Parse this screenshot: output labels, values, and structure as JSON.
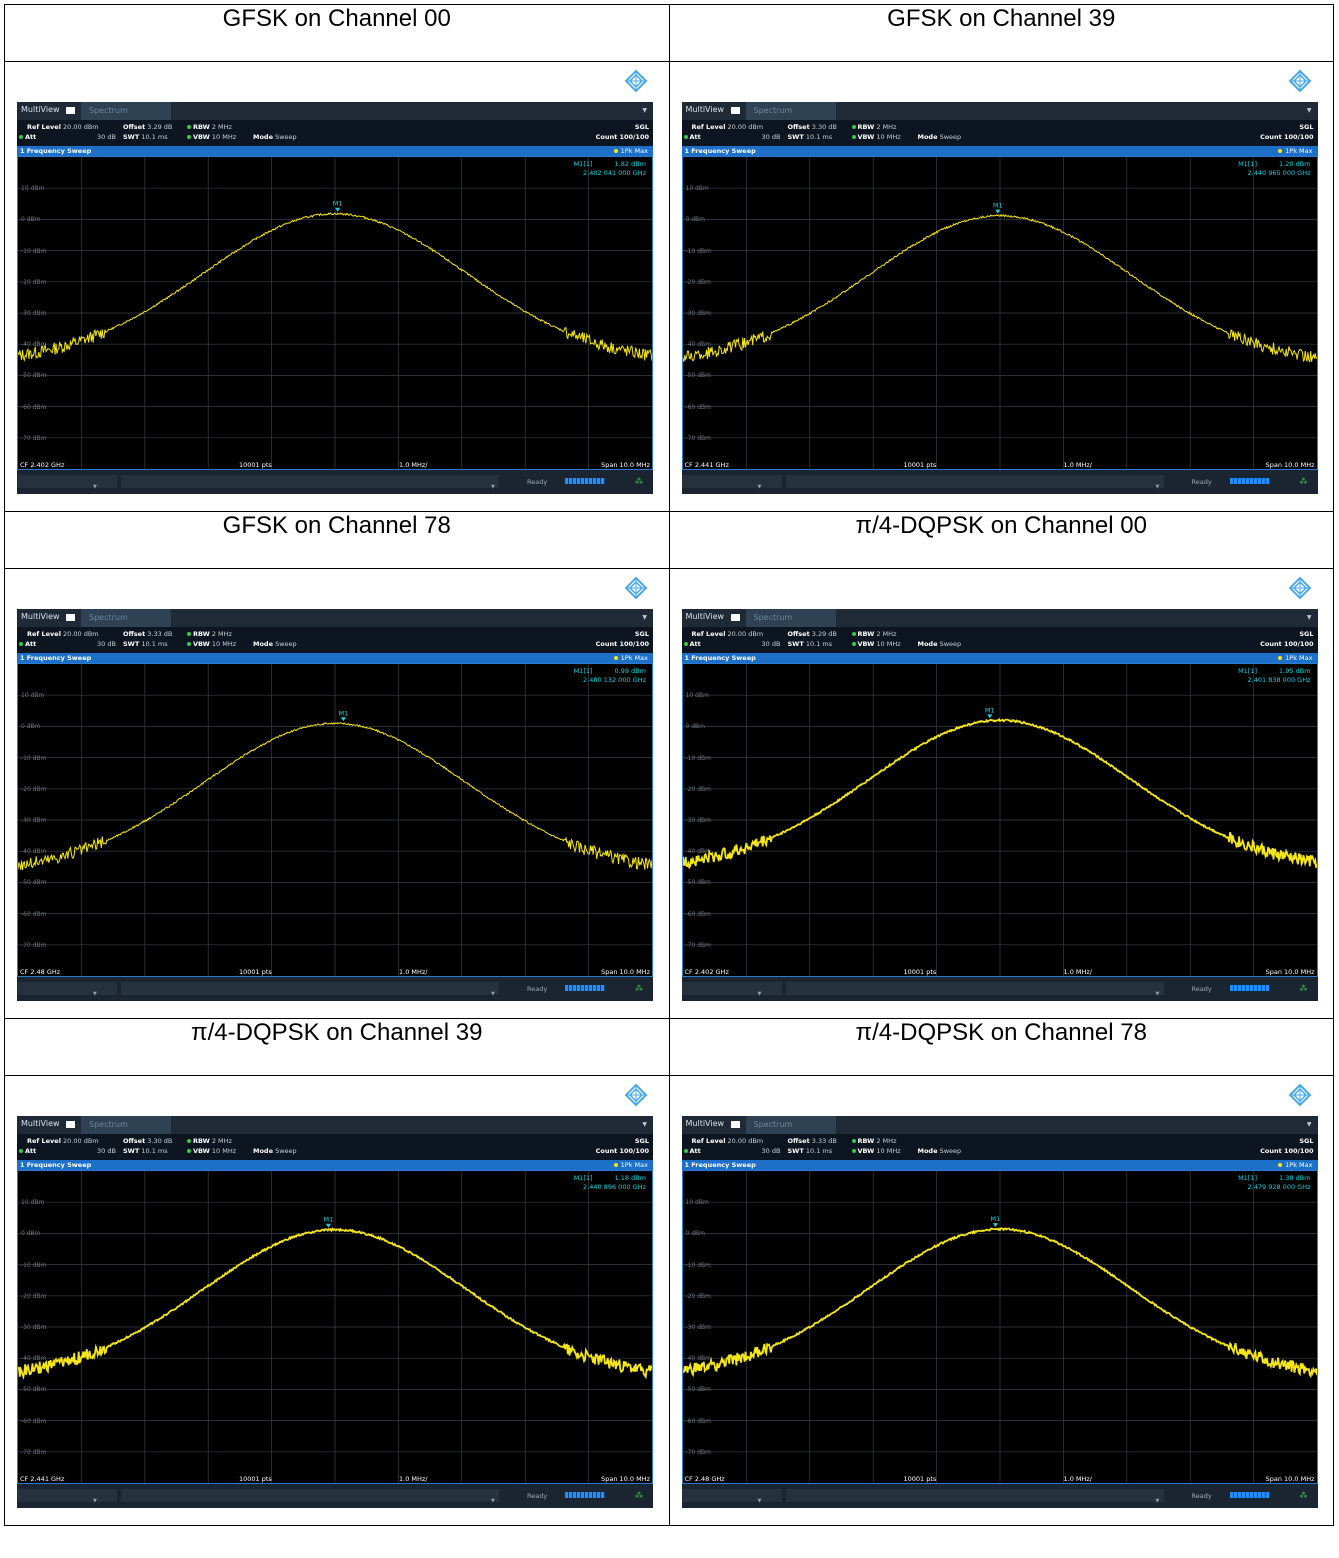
{
  "panels": [
    {
      "caption": "GFSK on Channel 00",
      "ref_level": "20.00 dBm",
      "offset": "3.29 dB",
      "rbw": "2 MHz",
      "att": "30 dB",
      "swt": "10.1 ms",
      "vbw": "10 MHz",
      "mode": "Sweep",
      "sgl": "SGL",
      "count": "Count 100/100",
      "sweep_title": "1 Frequency Sweep",
      "trace": "1Pk Max",
      "marker_id": "M1[1]",
      "marker_level": "1.82 dBm",
      "marker_freq": "2.402 041 000 GHz",
      "marker_label": "M1",
      "cf": "CF 2.402 GHz",
      "pts": "10001 pts",
      "div": "1.0 MHz/",
      "span": "Span 10.0 MHz",
      "status": "Ready",
      "peak_db": 1.82,
      "marker_offset_mhz": 0.041,
      "thickness": 1.0
    },
    {
      "caption": "GFSK on Channel 39",
      "ref_level": "20.00 dBm",
      "offset": "3.30 dB",
      "rbw": "2 MHz",
      "att": "30 dB",
      "swt": "10.1 ms",
      "vbw": "10 MHz",
      "mode": "Sweep",
      "sgl": "SGL",
      "count": "Count 100/100",
      "sweep_title": "1 Frequency Sweep",
      "trace": "1Pk Max",
      "marker_id": "M1[1]",
      "marker_level": "1.20 dBm",
      "marker_freq": "2.440 965 000 GHz",
      "marker_label": "M1",
      "cf": "CF 2.441 GHz",
      "pts": "10001 pts",
      "div": "1.0 MHz/",
      "span": "Span 10.0 MHz",
      "status": "Ready",
      "peak_db": 1.2,
      "marker_offset_mhz": -0.035,
      "thickness": 1.0
    },
    {
      "caption": "GFSK on Channel 78",
      "ref_level": "20.00 dBm",
      "offset": "3.33 dB",
      "rbw": "2 MHz",
      "att": "30 dB",
      "swt": "10.1 ms",
      "vbw": "10 MHz",
      "mode": "Sweep",
      "sgl": "SGL",
      "count": "Count 100/100",
      "sweep_title": "1 Frequency Sweep",
      "trace": "1Pk Max",
      "marker_id": "M1[1]",
      "marker_level": "0.99 dBm",
      "marker_freq": "2.480 132 000 GHz",
      "marker_label": "M1",
      "cf": "CF 2.48 GHz",
      "pts": "10001 pts",
      "div": "1.0 MHz/",
      "span": "Span 10.0 MHz",
      "status": "Ready",
      "peak_db": 0.99,
      "marker_offset_mhz": 0.132,
      "thickness": 1.0
    },
    {
      "caption": "π/4-DQPSK on Channel 00",
      "ref_level": "20.00 dBm",
      "offset": "3.29 dB",
      "rbw": "2 MHz",
      "att": "30 dB",
      "swt": "10.1 ms",
      "vbw": "10 MHz",
      "mode": "Sweep",
      "sgl": "SGL",
      "count": "Count 100/100",
      "sweep_title": "1 Frequency Sweep",
      "trace": "1Pk Max",
      "marker_id": "M1[1]",
      "marker_level": "1.95 dBm",
      "marker_freq": "2.401 838 000 GHz",
      "marker_label": "M1",
      "cf": "CF 2.402 GHz",
      "pts": "10001 pts",
      "div": "1.0 MHz/",
      "span": "Span 10.0 MHz",
      "status": "Ready",
      "peak_db": 1.95,
      "marker_offset_mhz": -0.162,
      "thickness": 1.8
    },
    {
      "caption": "π/4-DQPSK on Channel 39",
      "ref_level": "20.00 dBm",
      "offset": "3.30 dB",
      "rbw": "2 MHz",
      "att": "30 dB",
      "swt": "10.1 ms",
      "vbw": "10 MHz",
      "mode": "Sweep",
      "sgl": "SGL",
      "count": "Count 100/100",
      "sweep_title": "1 Frequency Sweep",
      "trace": "1Pk Max",
      "marker_id": "M1[1]",
      "marker_level": "1.18 dBm",
      "marker_freq": "2.440 896 000 GHz",
      "marker_label": "M1",
      "cf": "CF 2.441 GHz",
      "pts": "10001 pts",
      "div": "1.0 MHz/",
      "span": "Span 10.0 MHz",
      "status": "Ready",
      "peak_db": 1.18,
      "marker_offset_mhz": -0.104,
      "thickness": 1.8
    },
    {
      "caption": "π/4-DQPSK on Channel 78",
      "ref_level": "20.00 dBm",
      "offset": "3.33 dB",
      "rbw": "2 MHz",
      "att": "30 dB",
      "swt": "10.1 ms",
      "vbw": "10 MHz",
      "mode": "Sweep",
      "sgl": "SGL",
      "count": "Count 100/100",
      "sweep_title": "1 Frequency Sweep",
      "trace": "1Pk Max",
      "marker_id": "M1[1]",
      "marker_level": "1.38 dBm",
      "marker_freq": "2.479 928 000 GHz",
      "marker_label": "M1",
      "cf": "CF 2.48 GHz",
      "pts": "10001 pts",
      "div": "1.0 MHz/",
      "span": "Span 10.0 MHz",
      "status": "Ready",
      "peak_db": 1.38,
      "marker_offset_mhz": -0.072,
      "thickness": 1.8
    }
  ],
  "labels": {
    "multiview": "MultiView",
    "spectrum": "Spectrum",
    "ref_level": "Ref Level",
    "offset": "Offset",
    "rbw": "RBW",
    "att": "Att",
    "swt": "SWT",
    "vbw": "VBW",
    "mode": "Mode"
  },
  "y_ticks": [
    "10 dBm",
    "0 dBm",
    "-10 dBm",
    "-20 dBm",
    "-30 dBm",
    "-40 dBm",
    "-50 dBm",
    "-60 dBm",
    "-70 dBm"
  ],
  "y_axis": {
    "top_dbm": 20,
    "bottom_dbm": -80,
    "divisions": 10
  },
  "x_axis": {
    "span_mhz": 10,
    "divisions": 10
  },
  "colors": {
    "trace": "#f5e51b",
    "marker": "#17d2e0",
    "grid": "#3a3f44",
    "plot_border": "#2d7ad2",
    "title_bar": "#1d6fc7"
  },
  "chart_data": [
    {
      "type": "line",
      "title": "GFSK on Channel 00",
      "xlabel": "",
      "ylabel": "",
      "x_center": "CF 2.402 GHz",
      "span": "Span 10.0 MHz",
      "ylim": [
        -80,
        20
      ],
      "marker": {
        "freq": "2.402 041 000 GHz",
        "level_dbm": 1.82
      },
      "shape": "bell",
      "edge_level_dbm": -46
    },
    {
      "type": "line",
      "title": "GFSK on Channel 39",
      "xlabel": "",
      "ylabel": "",
      "x_center": "CF 2.441 GHz",
      "span": "Span 10.0 MHz",
      "ylim": [
        -80,
        20
      ],
      "marker": {
        "freq": "2.440 965 000 GHz",
        "level_dbm": 1.2
      },
      "shape": "bell",
      "edge_level_dbm": -46
    },
    {
      "type": "line",
      "title": "GFSK on Channel 78",
      "xlabel": "",
      "ylabel": "",
      "x_center": "CF 2.48 GHz",
      "span": "Span 10.0 MHz",
      "ylim": [
        -80,
        20
      ],
      "marker": {
        "freq": "2.480 132 000 GHz",
        "level_dbm": 0.99
      },
      "shape": "bell",
      "edge_level_dbm": -46
    },
    {
      "type": "line",
      "title": "π/4-DQPSK on Channel 00",
      "xlabel": "",
      "ylabel": "",
      "x_center": "CF 2.402 GHz",
      "span": "Span 10.0 MHz",
      "ylim": [
        -80,
        20
      ],
      "marker": {
        "freq": "2.401 838 000 GHz",
        "level_dbm": 1.95
      },
      "shape": "bell",
      "edge_level_dbm": -46
    },
    {
      "type": "line",
      "title": "π/4-DQPSK on Channel 39",
      "xlabel": "",
      "ylabel": "",
      "x_center": "CF 2.441 GHz",
      "span": "Span 10.0 MHz",
      "ylim": [
        -80,
        20
      ],
      "marker": {
        "freq": "2.440 896 000 GHz",
        "level_dbm": 1.18
      },
      "shape": "bell",
      "edge_level_dbm": -46
    },
    {
      "type": "line",
      "title": "π/4-DQPSK on Channel 78",
      "xlabel": "",
      "ylabel": "",
      "x_center": "CF 2.48 GHz",
      "span": "Span 10.0 MHz",
      "ylim": [
        -80,
        20
      ],
      "marker": {
        "freq": "2.479 928 000 GHz",
        "level_dbm": 1.38
      },
      "shape": "bell",
      "edge_level_dbm": -46
    }
  ]
}
